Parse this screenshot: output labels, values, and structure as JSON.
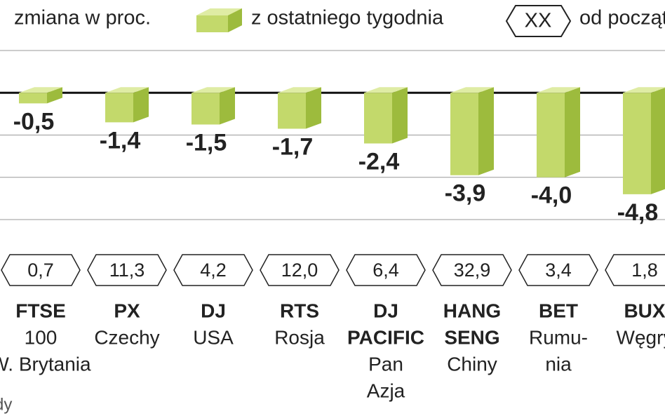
{
  "chart_data": {
    "type": "bar",
    "legend_title": "zmiana w proc.",
    "legend_sample": "XX",
    "categories": [
      {
        "name": [
          "FTSE"
        ],
        "region": [
          "100",
          "W. Brytania"
        ]
      },
      {
        "name": [
          "PX"
        ],
        "region": [
          "Czechy"
        ]
      },
      {
        "name": [
          "DJ"
        ],
        "region": [
          "USA"
        ]
      },
      {
        "name": [
          "RTS"
        ],
        "region": [
          "Rosja"
        ]
      },
      {
        "name": [
          "DJ",
          "PACIFIC"
        ],
        "region": [
          "Pan",
          "Azja"
        ]
      },
      {
        "name": [
          "HANG",
          "SENG"
        ],
        "region": [
          "Chiny"
        ]
      },
      {
        "name": [
          "BET"
        ],
        "region": [
          "Rumu-",
          "nia"
        ]
      },
      {
        "name": [
          "BUX"
        ],
        "region": [
          "Węgry"
        ]
      }
    ],
    "series": [
      {
        "name": "z ostatniego tygodnia",
        "color": "#c3d96b",
        "values": [
          -0.5,
          -1.4,
          -1.5,
          -1.7,
          -2.4,
          -3.9,
          -4.0,
          -4.8
        ],
        "value_labels": [
          "-0,5",
          "-1,4",
          "-1,5",
          "-1,7",
          "-2,4",
          "-3,9",
          "-4,0",
          "-4,8"
        ]
      },
      {
        "name": "od początku roku",
        "values": [
          0.7,
          11.3,
          4.2,
          12.0,
          6.4,
          32.9,
          3.4,
          1.8
        ],
        "value_labels": [
          "0,7",
          "11,3",
          "4,2",
          "12,0",
          "6,4",
          "32,9",
          "3,4",
          "1,8"
        ]
      }
    ],
    "ylim": [
      2,
      -6
    ],
    "gridlines": [
      2,
      0,
      -2,
      -4,
      -6
    ],
    "footer": "dy"
  }
}
